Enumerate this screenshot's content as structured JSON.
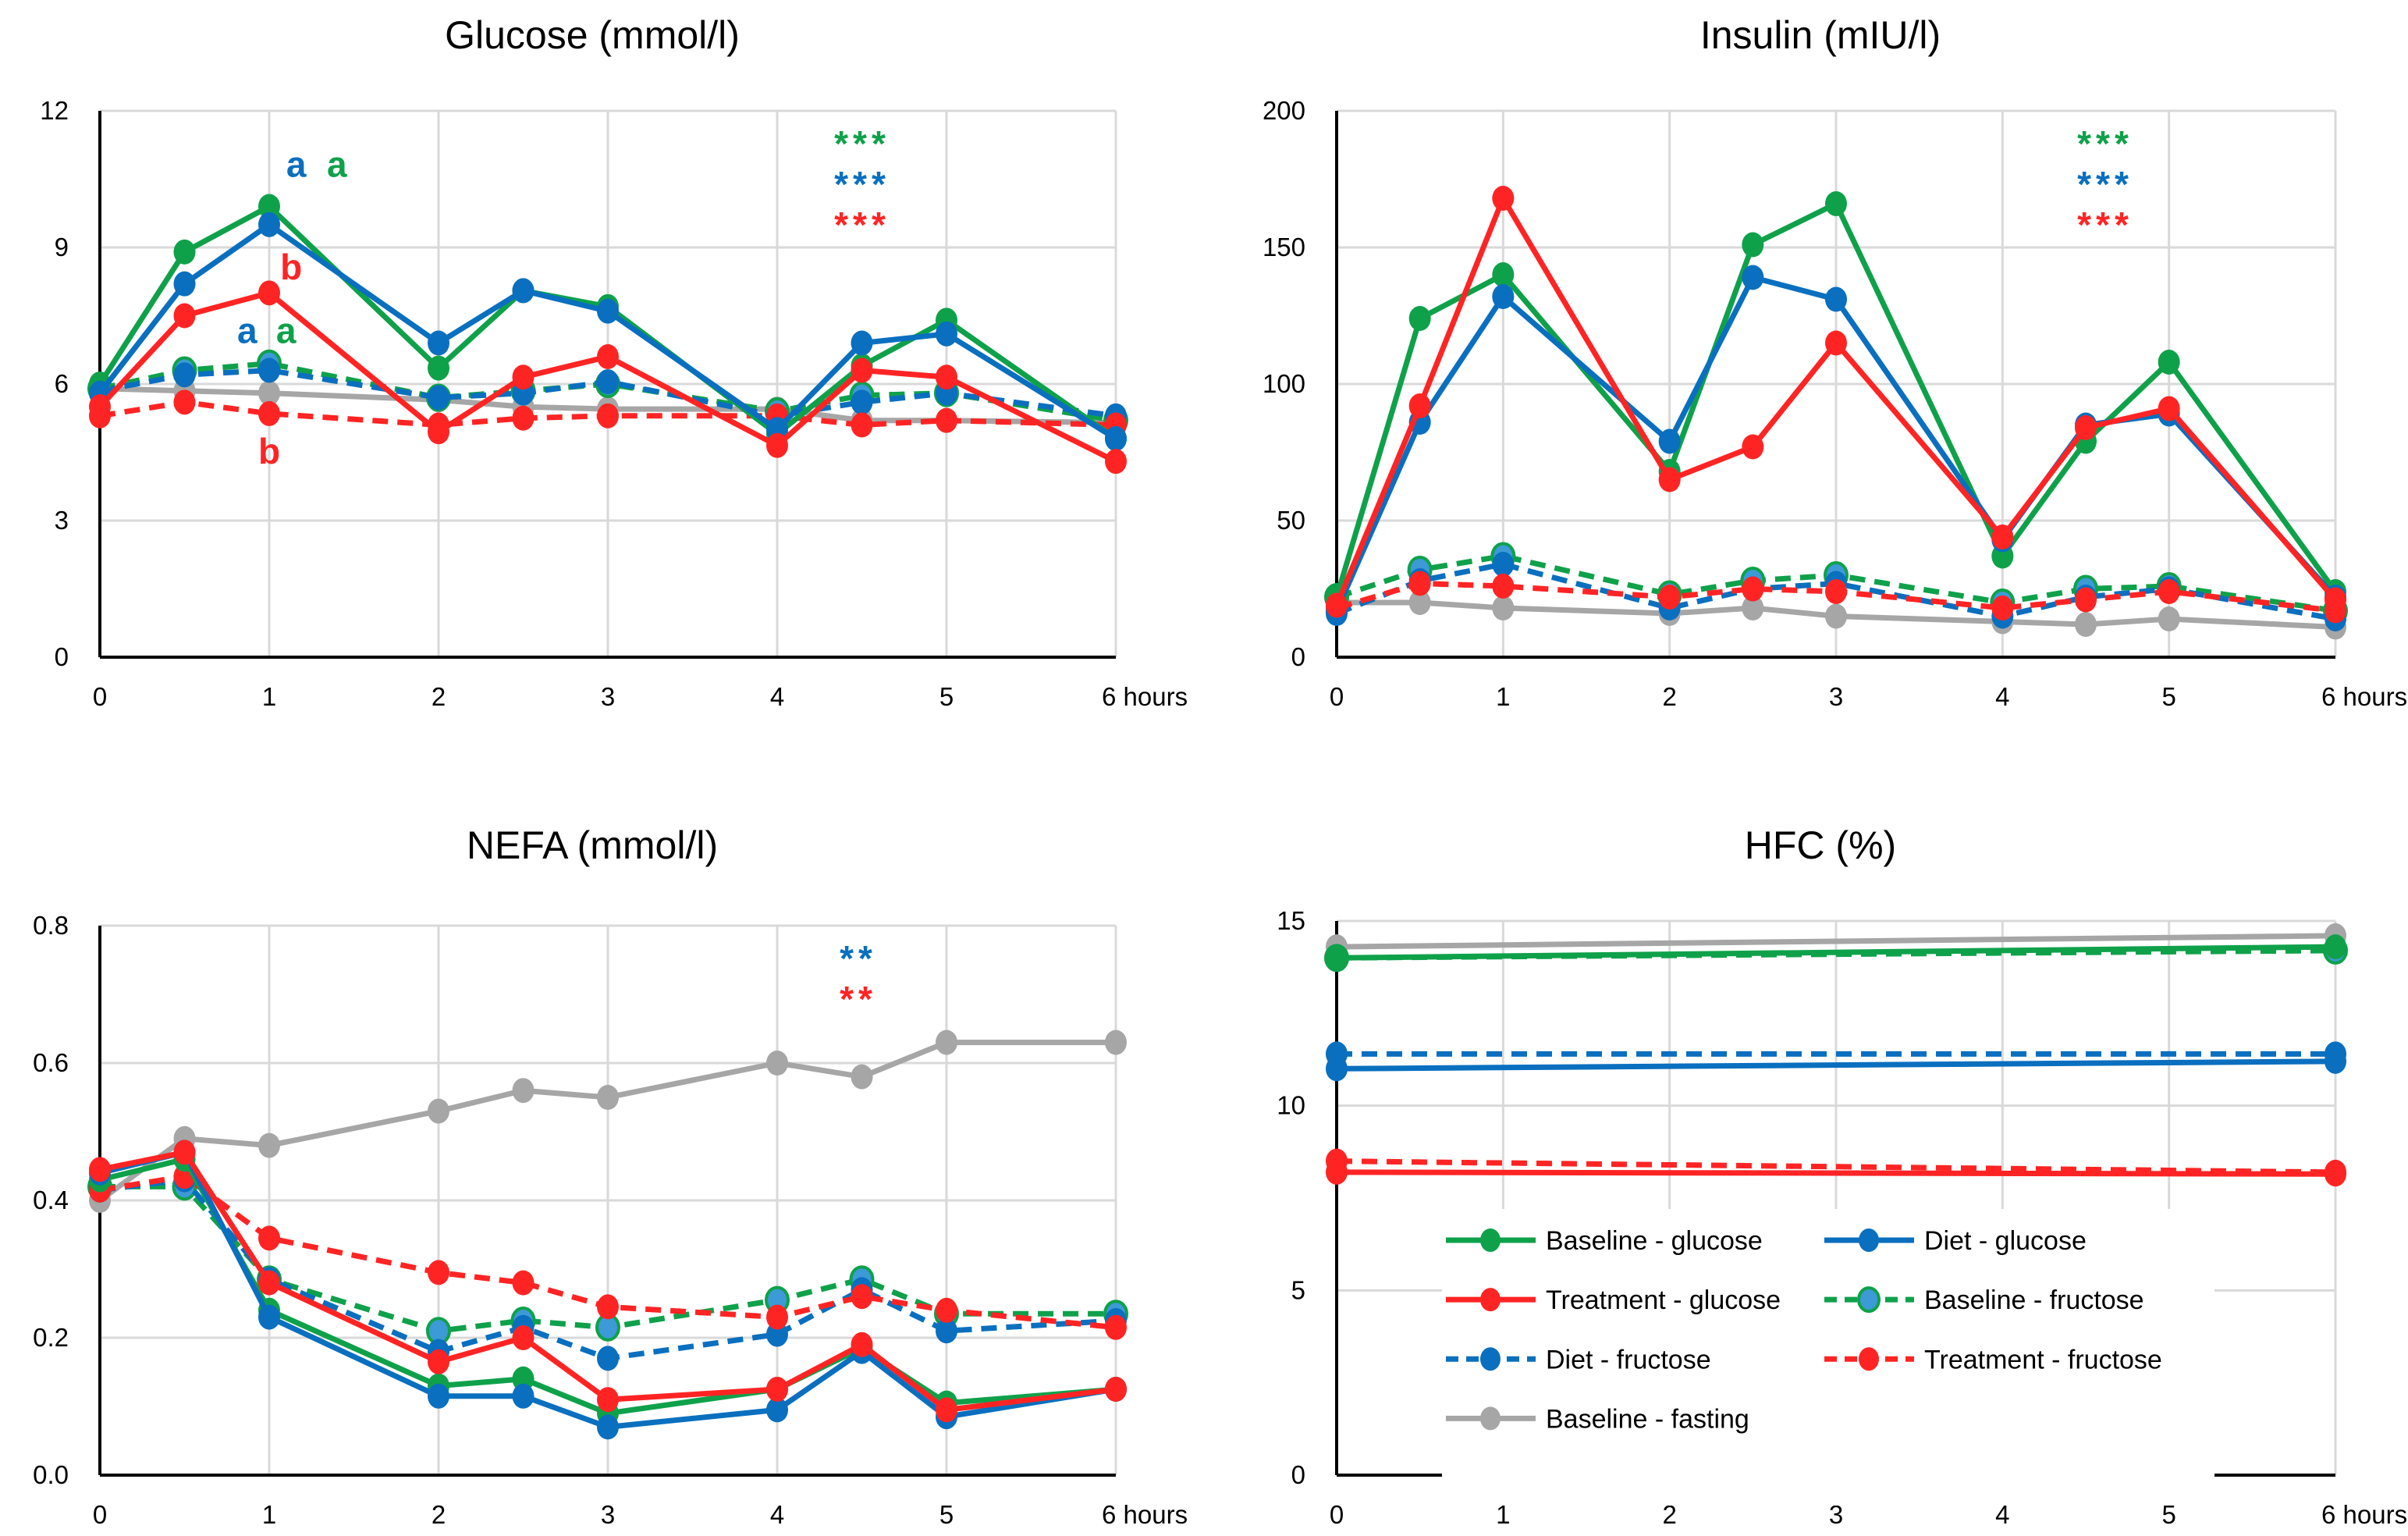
{
  "colors": {
    "green": "#0fa14a",
    "blue": "#0a6fbf",
    "red": "#ff2424",
    "grey": "#a6a6a6",
    "fructose_marker_fill": "#3c9ad6"
  },
  "legend": [
    {
      "label": "Baseline - glucose",
      "key": "bg"
    },
    {
      "label": "Diet - glucose",
      "key": "dg"
    },
    {
      "label": "Treatment - glucose",
      "key": "tg"
    },
    {
      "label": "Baseline - fructose",
      "key": "bf"
    },
    {
      "label": "Diet - fructose",
      "key": "df"
    },
    {
      "label": "Treatment - fructose",
      "key": "tf"
    },
    {
      "label": "Baseline - fasting",
      "key": "fa"
    }
  ],
  "series_styles": {
    "bg": {
      "color": "green",
      "dashed": false
    },
    "dg": {
      "color": "blue",
      "dashed": false
    },
    "tg": {
      "color": "red",
      "dashed": false
    },
    "bf": {
      "color": "green",
      "dashed": true,
      "marker_fill": "fructose_marker_fill"
    },
    "df": {
      "color": "blue",
      "dashed": true
    },
    "tf": {
      "color": "red",
      "dashed": true
    },
    "fa": {
      "color": "grey",
      "dashed": false
    }
  },
  "chart_data": [
    {
      "id": "glucose",
      "type": "line",
      "title": "Glucose (mmol/l)",
      "xlabel": "hours",
      "x_tick_labels": [
        "0",
        "1",
        "2",
        "3",
        "4",
        "5",
        "6 hours"
      ],
      "x_ticks": [
        0,
        1,
        2,
        3,
        4,
        5,
        6
      ],
      "xlim": [
        0,
        6
      ],
      "ylim": [
        0,
        12
      ],
      "y_ticks": [
        0,
        3,
        6,
        9,
        12
      ],
      "y_tick_labels": [
        "0",
        "3",
        "6",
        "9",
        "12"
      ],
      "grid": true,
      "x": [
        0,
        0.5,
        1,
        2,
        2.5,
        3,
        4,
        4.5,
        5,
        6
      ],
      "series": [
        {
          "key": "bg",
          "name": "Baseline - glucose",
          "values": [
            6.0,
            8.9,
            9.9,
            6.35,
            8.05,
            7.7,
            4.9,
            6.4,
            7.4,
            4.8
          ]
        },
        {
          "key": "dg",
          "name": "Diet - glucose",
          "values": [
            5.8,
            8.2,
            9.5,
            6.9,
            8.05,
            7.6,
            5.0,
            6.9,
            7.1,
            4.8
          ]
        },
        {
          "key": "tg",
          "name": "Treatment - glucose",
          "values": [
            5.5,
            7.5,
            8.0,
            4.95,
            6.15,
            6.6,
            4.65,
            6.3,
            6.15,
            4.3
          ]
        },
        {
          "key": "bf",
          "name": "Baseline - fructose",
          "values": [
            5.9,
            6.3,
            6.45,
            5.7,
            5.85,
            6.0,
            5.4,
            5.75,
            5.8,
            5.2
          ]
        },
        {
          "key": "df",
          "name": "Diet - fructose",
          "values": [
            5.85,
            6.2,
            6.3,
            5.7,
            5.8,
            6.05,
            5.3,
            5.6,
            5.8,
            5.3
          ]
        },
        {
          "key": "tf",
          "name": "Treatment - fructose",
          "values": [
            5.3,
            5.6,
            5.35,
            5.1,
            5.25,
            5.3,
            5.3,
            5.1,
            5.2,
            5.1
          ]
        },
        {
          "key": "fa",
          "name": "Baseline - fasting",
          "values": [
            5.9,
            5.85,
            5.8,
            5.65,
            5.5,
            5.45,
            5.45,
            5.2,
            5.2,
            5.15
          ]
        }
      ],
      "significance": [
        {
          "text": "***",
          "color": "green"
        },
        {
          "text": "***",
          "color": "blue"
        },
        {
          "text": "***",
          "color": "red"
        }
      ],
      "annotations": [
        {
          "text": "a",
          "color": "blue",
          "x": 1.16,
          "y": 10.55
        },
        {
          "text": "a",
          "color": "green",
          "x": 1.4,
          "y": 10.55
        },
        {
          "text": "b",
          "color": "red",
          "x": 1.13,
          "y": 8.3
        },
        {
          "text": "a",
          "color": "blue",
          "x": 0.87,
          "y": 6.9
        },
        {
          "text": "a",
          "color": "green",
          "x": 1.1,
          "y": 6.9
        },
        {
          "text": "b",
          "color": "red",
          "x": 1.0,
          "y": 4.25
        }
      ]
    },
    {
      "id": "insulin",
      "type": "line",
      "title": "Insulin (mIU/l)",
      "xlabel": "hours",
      "x_tick_labels": [
        "0",
        "1",
        "2",
        "3",
        "4",
        "5",
        "6 hours"
      ],
      "x_ticks": [
        0,
        1,
        2,
        3,
        4,
        5,
        6
      ],
      "xlim": [
        0,
        6
      ],
      "ylim": [
        0,
        200
      ],
      "y_ticks": [
        0,
        50,
        100,
        150,
        200
      ],
      "y_tick_labels": [
        "0",
        "50",
        "100",
        "150",
        "200"
      ],
      "grid": true,
      "x": [
        0,
        0.5,
        1,
        2,
        2.5,
        3,
        4,
        4.5,
        5,
        6
      ],
      "series": [
        {
          "key": "bg",
          "name": "Baseline - glucose",
          "values": [
            22,
            124,
            140,
            68,
            151,
            166,
            37,
            79,
            108,
            24
          ]
        },
        {
          "key": "dg",
          "name": "Diet - glucose",
          "values": [
            17,
            86,
            132,
            79,
            139,
            131,
            43,
            85,
            89,
            22
          ]
        },
        {
          "key": "tg",
          "name": "Treatment - glucose",
          "values": [
            19,
            92,
            168,
            65,
            77,
            115,
            44,
            84,
            91,
            21
          ]
        },
        {
          "key": "bf",
          "name": "Baseline - fructose",
          "values": [
            22,
            32,
            37,
            23,
            28,
            30,
            20,
            25,
            26,
            17
          ]
        },
        {
          "key": "df",
          "name": "Diet - fructose",
          "values": [
            16,
            28,
            34,
            18,
            25,
            27,
            15,
            22,
            25,
            14
          ]
        },
        {
          "key": "tf",
          "name": "Treatment - fructose",
          "values": [
            18,
            27,
            26,
            22,
            25,
            24,
            18,
            21,
            24,
            17
          ]
        },
        {
          "key": "fa",
          "name": "Baseline - fasting",
          "values": [
            20,
            20,
            18,
            16,
            18,
            15,
            13,
            12,
            14,
            11
          ]
        }
      ],
      "significance": [
        {
          "text": "***",
          "color": "green"
        },
        {
          "text": "***",
          "color": "blue"
        },
        {
          "text": "***",
          "color": "red"
        }
      ],
      "annotations": []
    },
    {
      "id": "nefa",
      "type": "line",
      "title": "NEFA (mmol/l)",
      "xlabel": "hours",
      "x_tick_labels": [
        "0",
        "1",
        "2",
        "3",
        "4",
        "5",
        "6 hours"
      ],
      "x_ticks": [
        0,
        1,
        2,
        3,
        4,
        5,
        6
      ],
      "xlim": [
        0,
        6
      ],
      "ylim": [
        0,
        0.8
      ],
      "y_ticks": [
        0,
        0.2,
        0.4,
        0.6,
        0.8
      ],
      "y_tick_labels": [
        "0.0",
        "0.2",
        "0.4",
        "0.6",
        "0.8"
      ],
      "grid": true,
      "x": [
        0,
        0.5,
        1,
        2,
        2.5,
        3,
        4,
        4.5,
        5,
        6
      ],
      "series": [
        {
          "key": "bg",
          "name": "Baseline - glucose",
          "values": [
            0.43,
            0.46,
            0.24,
            0.13,
            0.14,
            0.09,
            0.125,
            0.185,
            0.105,
            0.125
          ]
        },
        {
          "key": "dg",
          "name": "Diet - glucose",
          "values": [
            0.44,
            0.47,
            0.23,
            0.115,
            0.115,
            0.07,
            0.095,
            0.18,
            0.085,
            0.125
          ]
        },
        {
          "key": "tg",
          "name": "Treatment - glucose",
          "values": [
            0.445,
            0.47,
            0.28,
            0.165,
            0.2,
            0.11,
            0.125,
            0.19,
            0.095,
            0.125
          ]
        },
        {
          "key": "bf",
          "name": "Baseline - fructose",
          "values": [
            0.42,
            0.42,
            0.285,
            0.21,
            0.225,
            0.215,
            0.255,
            0.285,
            0.235,
            0.235
          ]
        },
        {
          "key": "df",
          "name": "Diet - fructose",
          "values": [
            0.415,
            0.43,
            0.285,
            0.18,
            0.215,
            0.17,
            0.205,
            0.27,
            0.21,
            0.225
          ]
        },
        {
          "key": "tf",
          "name": "Treatment - fructose",
          "values": [
            0.415,
            0.435,
            0.345,
            0.295,
            0.28,
            0.245,
            0.23,
            0.26,
            0.24,
            0.215
          ]
        },
        {
          "key": "fa",
          "name": "Baseline - fasting",
          "values": [
            0.4,
            0.49,
            0.48,
            0.53,
            0.56,
            0.55,
            0.6,
            0.58,
            0.63,
            0.63
          ]
        }
      ],
      "significance": [
        {
          "text": "**",
          "color": "blue"
        },
        {
          "text": "**",
          "color": "red"
        }
      ],
      "annotations": []
    },
    {
      "id": "hfc",
      "type": "line",
      "title": "HFC (%)",
      "xlabel": "hours",
      "x_tick_labels": [
        "0",
        "1",
        "2",
        "3",
        "4",
        "5",
        "6 hours"
      ],
      "x_ticks": [
        0,
        1,
        2,
        3,
        4,
        5,
        6
      ],
      "xlim": [
        0,
        6
      ],
      "ylim": [
        0,
        15
      ],
      "y_ticks": [
        0,
        5,
        10,
        15
      ],
      "y_tick_labels": [
        "0",
        "5",
        "10",
        "15"
      ],
      "grid": true,
      "legend_position": "lower-center",
      "x": [
        0,
        6
      ],
      "series": [
        {
          "key": "bg",
          "name": "Baseline - glucose",
          "values": [
            14.0,
            14.3
          ]
        },
        {
          "key": "dg",
          "name": "Diet - glucose",
          "values": [
            11.0,
            11.2
          ]
        },
        {
          "key": "tg",
          "name": "Treatment - glucose",
          "values": [
            8.2,
            8.15
          ]
        },
        {
          "key": "bf",
          "name": "Baseline - fructose",
          "values": [
            14.0,
            14.2
          ]
        },
        {
          "key": "df",
          "name": "Diet - fructose",
          "values": [
            11.4,
            11.4
          ]
        },
        {
          "key": "tf",
          "name": "Treatment - fructose",
          "values": [
            8.5,
            8.2
          ]
        },
        {
          "key": "fa",
          "name": "Baseline - fasting",
          "values": [
            14.3,
            14.6
          ]
        }
      ],
      "significance": [],
      "annotations": []
    }
  ]
}
